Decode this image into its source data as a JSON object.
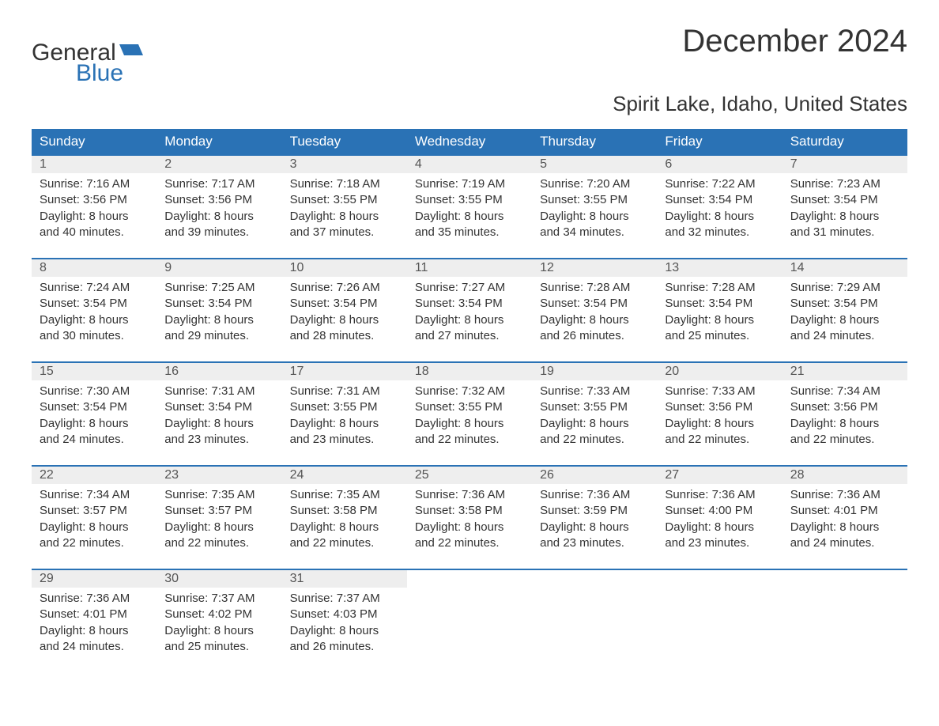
{
  "logo": {
    "text1": "General",
    "text2": "Blue",
    "color_blue": "#2a72b5",
    "color_dark": "#333333"
  },
  "header": {
    "month_title": "December 2024",
    "location": "Spirit Lake, Idaho, United States"
  },
  "calendar": {
    "type": "table",
    "columns": [
      "Sunday",
      "Monday",
      "Tuesday",
      "Wednesday",
      "Thursday",
      "Friday",
      "Saturday"
    ],
    "header_bg": "#2a72b5",
    "header_fg": "#ffffff",
    "daynum_bg": "#eeeeee",
    "row_border_color": "#2a72b5",
    "body_bg": "#ffffff",
    "text_color": "#333333",
    "font_size_header": 17,
    "font_size_daynum": 16,
    "font_size_body": 15,
    "weeks": [
      [
        {
          "n": "1",
          "sunrise": "7:16 AM",
          "sunset": "3:56 PM",
          "daylight": "8 hours and 40 minutes."
        },
        {
          "n": "2",
          "sunrise": "7:17 AM",
          "sunset": "3:56 PM",
          "daylight": "8 hours and 39 minutes."
        },
        {
          "n": "3",
          "sunrise": "7:18 AM",
          "sunset": "3:55 PM",
          "daylight": "8 hours and 37 minutes."
        },
        {
          "n": "4",
          "sunrise": "7:19 AM",
          "sunset": "3:55 PM",
          "daylight": "8 hours and 35 minutes."
        },
        {
          "n": "5",
          "sunrise": "7:20 AM",
          "sunset": "3:55 PM",
          "daylight": "8 hours and 34 minutes."
        },
        {
          "n": "6",
          "sunrise": "7:22 AM",
          "sunset": "3:54 PM",
          "daylight": "8 hours and 32 minutes."
        },
        {
          "n": "7",
          "sunrise": "7:23 AM",
          "sunset": "3:54 PM",
          "daylight": "8 hours and 31 minutes."
        }
      ],
      [
        {
          "n": "8",
          "sunrise": "7:24 AM",
          "sunset": "3:54 PM",
          "daylight": "8 hours and 30 minutes."
        },
        {
          "n": "9",
          "sunrise": "7:25 AM",
          "sunset": "3:54 PM",
          "daylight": "8 hours and 29 minutes."
        },
        {
          "n": "10",
          "sunrise": "7:26 AM",
          "sunset": "3:54 PM",
          "daylight": "8 hours and 28 minutes."
        },
        {
          "n": "11",
          "sunrise": "7:27 AM",
          "sunset": "3:54 PM",
          "daylight": "8 hours and 27 minutes."
        },
        {
          "n": "12",
          "sunrise": "7:28 AM",
          "sunset": "3:54 PM",
          "daylight": "8 hours and 26 minutes."
        },
        {
          "n": "13",
          "sunrise": "7:28 AM",
          "sunset": "3:54 PM",
          "daylight": "8 hours and 25 minutes."
        },
        {
          "n": "14",
          "sunrise": "7:29 AM",
          "sunset": "3:54 PM",
          "daylight": "8 hours and 24 minutes."
        }
      ],
      [
        {
          "n": "15",
          "sunrise": "7:30 AM",
          "sunset": "3:54 PM",
          "daylight": "8 hours and 24 minutes."
        },
        {
          "n": "16",
          "sunrise": "7:31 AM",
          "sunset": "3:54 PM",
          "daylight": "8 hours and 23 minutes."
        },
        {
          "n": "17",
          "sunrise": "7:31 AM",
          "sunset": "3:55 PM",
          "daylight": "8 hours and 23 minutes."
        },
        {
          "n": "18",
          "sunrise": "7:32 AM",
          "sunset": "3:55 PM",
          "daylight": "8 hours and 22 minutes."
        },
        {
          "n": "19",
          "sunrise": "7:33 AM",
          "sunset": "3:55 PM",
          "daylight": "8 hours and 22 minutes."
        },
        {
          "n": "20",
          "sunrise": "7:33 AM",
          "sunset": "3:56 PM",
          "daylight": "8 hours and 22 minutes."
        },
        {
          "n": "21",
          "sunrise": "7:34 AM",
          "sunset": "3:56 PM",
          "daylight": "8 hours and 22 minutes."
        }
      ],
      [
        {
          "n": "22",
          "sunrise": "7:34 AM",
          "sunset": "3:57 PM",
          "daylight": "8 hours and 22 minutes."
        },
        {
          "n": "23",
          "sunrise": "7:35 AM",
          "sunset": "3:57 PM",
          "daylight": "8 hours and 22 minutes."
        },
        {
          "n": "24",
          "sunrise": "7:35 AM",
          "sunset": "3:58 PM",
          "daylight": "8 hours and 22 minutes."
        },
        {
          "n": "25",
          "sunrise": "7:36 AM",
          "sunset": "3:58 PM",
          "daylight": "8 hours and 22 minutes."
        },
        {
          "n": "26",
          "sunrise": "7:36 AM",
          "sunset": "3:59 PM",
          "daylight": "8 hours and 23 minutes."
        },
        {
          "n": "27",
          "sunrise": "7:36 AM",
          "sunset": "4:00 PM",
          "daylight": "8 hours and 23 minutes."
        },
        {
          "n": "28",
          "sunrise": "7:36 AM",
          "sunset": "4:01 PM",
          "daylight": "8 hours and 24 minutes."
        }
      ],
      [
        {
          "n": "29",
          "sunrise": "7:36 AM",
          "sunset": "4:01 PM",
          "daylight": "8 hours and 24 minutes."
        },
        {
          "n": "30",
          "sunrise": "7:37 AM",
          "sunset": "4:02 PM",
          "daylight": "8 hours and 25 minutes."
        },
        {
          "n": "31",
          "sunrise": "7:37 AM",
          "sunset": "4:03 PM",
          "daylight": "8 hours and 26 minutes."
        },
        null,
        null,
        null,
        null
      ]
    ],
    "labels": {
      "sunrise": "Sunrise: ",
      "sunset": "Sunset: ",
      "daylight": "Daylight: "
    }
  }
}
